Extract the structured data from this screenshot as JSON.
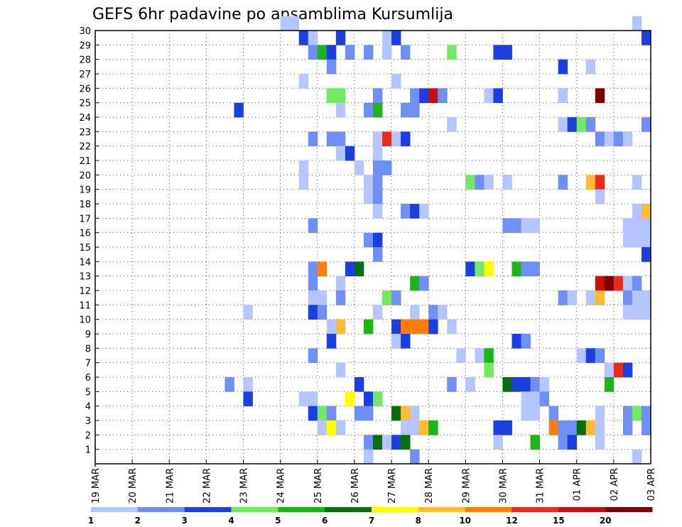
{
  "chart_data": {
    "type": "heatmap",
    "title": "GEFS 6hr padavine po ansamblima Kursumlija",
    "x_tick_labels": [
      "19 MAR",
      "20 MAR",
      "21 MAR",
      "22 MAR",
      "23 MAR",
      "24 MAR",
      "25 MAR",
      "26 MAR",
      "27 MAR",
      "28 MAR",
      "29 MAR",
      "30 MAR",
      "31 MAR",
      "01 APR",
      "02 APR",
      "03 APR"
    ],
    "y_tick_labels": [
      "1",
      "2",
      "3",
      "4",
      "5",
      "6",
      "7",
      "8",
      "9",
      "10",
      "11",
      "12",
      "13",
      "14",
      "15",
      "16",
      "17",
      "18",
      "19",
      "20",
      "21",
      "22",
      "23",
      "24",
      "25",
      "26",
      "27",
      "28",
      "29",
      "30"
    ],
    "x_steps_per_day": 4,
    "x_range_steps": [
      0,
      60
    ],
    "y_range_members": [
      0,
      30
    ],
    "grid": true,
    "legend_thresholds": [
      "1",
      "2",
      "3",
      "4",
      "5",
      "6",
      "7",
      "8",
      "10",
      "12",
      "15",
      "20"
    ],
    "legend_colors": [
      "#b4c5ff",
      "#6f8ff5",
      "#1c40e0",
      "#72e864",
      "#1bb41b",
      "#0a6e0a",
      "#ffff00",
      "#ffbb33",
      "#ff7d0a",
      "#e82c1e",
      "#c41010",
      "#7d0000"
    ],
    "cells": [
      [
        30,
        20,
        0
      ],
      [
        30,
        21,
        0
      ],
      [
        30,
        58,
        0
      ],
      [
        29,
        22,
        2
      ],
      [
        29,
        23,
        0
      ],
      [
        29,
        26,
        2
      ],
      [
        29,
        31,
        0
      ],
      [
        29,
        32,
        2
      ],
      [
        29,
        59,
        2
      ],
      [
        28,
        23,
        1
      ],
      [
        28,
        24,
        4
      ],
      [
        28,
        25,
        2
      ],
      [
        28,
        27,
        1
      ],
      [
        28,
        29,
        1
      ],
      [
        28,
        31,
        0
      ],
      [
        28,
        33,
        1
      ],
      [
        28,
        38,
        3
      ],
      [
        28,
        43,
        2
      ],
      [
        28,
        44,
        2
      ],
      [
        27,
        25,
        1
      ],
      [
        27,
        50,
        2
      ],
      [
        27,
        53,
        0
      ],
      [
        26,
        22,
        0
      ],
      [
        26,
        32,
        0
      ],
      [
        25,
        25,
        3
      ],
      [
        25,
        26,
        3
      ],
      [
        25,
        30,
        1
      ],
      [
        25,
        34,
        1
      ],
      [
        25,
        35,
        2
      ],
      [
        25,
        36,
        10
      ],
      [
        25,
        37,
        1
      ],
      [
        25,
        42,
        0
      ],
      [
        25,
        43,
        2
      ],
      [
        25,
        50,
        0
      ],
      [
        25,
        54,
        11
      ],
      [
        24,
        15,
        2
      ],
      [
        24,
        26,
        0
      ],
      [
        24,
        29,
        1
      ],
      [
        24,
        30,
        4
      ],
      [
        24,
        33,
        1
      ],
      [
        24,
        34,
        1
      ],
      [
        23,
        38,
        0
      ],
      [
        23,
        50,
        0
      ],
      [
        23,
        51,
        2
      ],
      [
        23,
        52,
        3
      ],
      [
        23,
        53,
        1
      ],
      [
        23,
        59,
        1
      ],
      [
        22,
        23,
        1
      ],
      [
        22,
        25,
        1
      ],
      [
        22,
        26,
        1
      ],
      [
        22,
        30,
        0
      ],
      [
        22,
        31,
        9
      ],
      [
        22,
        32,
        0
      ],
      [
        22,
        33,
        2
      ],
      [
        22,
        54,
        1
      ],
      [
        22,
        55,
        0
      ],
      [
        22,
        56,
        1
      ],
      [
        22,
        57,
        0
      ],
      [
        21,
        26,
        0
      ],
      [
        21,
        27,
        2
      ],
      [
        21,
        30,
        0
      ],
      [
        20,
        22,
        0
      ],
      [
        20,
        28,
        0
      ],
      [
        20,
        30,
        1
      ],
      [
        20,
        31,
        1
      ],
      [
        19,
        22,
        0
      ],
      [
        19,
        29,
        0
      ],
      [
        19,
        30,
        1
      ],
      [
        19,
        40,
        3
      ],
      [
        19,
        41,
        1
      ],
      [
        19,
        42,
        0
      ],
      [
        19,
        44,
        0
      ],
      [
        19,
        50,
        1
      ],
      [
        19,
        53,
        7
      ],
      [
        19,
        54,
        9
      ],
      [
        19,
        58,
        0
      ],
      [
        18,
        29,
        0
      ],
      [
        18,
        30,
        1
      ],
      [
        18,
        54,
        0
      ],
      [
        17,
        30,
        0
      ],
      [
        17,
        33,
        1
      ],
      [
        17,
        34,
        2
      ],
      [
        17,
        35,
        0
      ],
      [
        17,
        58,
        0
      ],
      [
        17,
        59,
        7
      ],
      [
        16,
        23,
        1
      ],
      [
        16,
        44,
        1
      ],
      [
        16,
        45,
        1
      ],
      [
        16,
        46,
        0
      ],
      [
        16,
        47,
        0
      ],
      [
        16,
        57,
        0
      ],
      [
        16,
        58,
        0
      ],
      [
        16,
        59,
        0
      ],
      [
        15,
        29,
        1
      ],
      [
        15,
        30,
        2
      ],
      [
        15,
        57,
        0
      ],
      [
        15,
        58,
        0
      ],
      [
        15,
        59,
        0
      ],
      [
        14,
        30,
        1
      ],
      [
        14,
        59,
        2
      ],
      [
        13,
        23,
        1
      ],
      [
        13,
        24,
        8
      ],
      [
        13,
        27,
        2
      ],
      [
        13,
        28,
        5
      ],
      [
        13,
        40,
        2
      ],
      [
        13,
        41,
        3
      ],
      [
        13,
        42,
        6
      ],
      [
        13,
        45,
        4
      ],
      [
        13,
        46,
        1
      ],
      [
        13,
        47,
        1
      ],
      [
        12,
        23,
        1
      ],
      [
        12,
        26,
        0
      ],
      [
        12,
        34,
        4
      ],
      [
        12,
        35,
        1
      ],
      [
        12,
        54,
        10
      ],
      [
        12,
        55,
        11
      ],
      [
        12,
        56,
        9
      ],
      [
        12,
        57,
        0
      ],
      [
        12,
        58,
        1
      ],
      [
        11,
        23,
        0
      ],
      [
        11,
        24,
        0
      ],
      [
        11,
        26,
        1
      ],
      [
        11,
        31,
        3
      ],
      [
        11,
        32,
        1
      ],
      [
        11,
        50,
        1
      ],
      [
        11,
        51,
        0
      ],
      [
        11,
        53,
        0
      ],
      [
        11,
        54,
        7
      ],
      [
        11,
        57,
        1
      ],
      [
        11,
        58,
        0
      ],
      [
        11,
        59,
        0
      ],
      [
        10,
        16,
        0
      ],
      [
        10,
        23,
        2
      ],
      [
        10,
        24,
        1
      ],
      [
        10,
        30,
        0
      ],
      [
        10,
        34,
        0
      ],
      [
        10,
        36,
        1
      ],
      [
        10,
        37,
        0
      ],
      [
        10,
        57,
        0
      ],
      [
        10,
        58,
        0
      ],
      [
        10,
        59,
        0
      ],
      [
        9,
        25,
        0
      ],
      [
        9,
        26,
        7
      ],
      [
        9,
        29,
        4
      ],
      [
        9,
        32,
        2
      ],
      [
        9,
        33,
        8
      ],
      [
        9,
        34,
        8
      ],
      [
        9,
        35,
        8
      ],
      [
        9,
        36,
        2
      ],
      [
        9,
        38,
        0
      ],
      [
        8,
        25,
        2
      ],
      [
        8,
        32,
        0
      ],
      [
        8,
        33,
        2
      ],
      [
        8,
        45,
        2
      ],
      [
        8,
        46,
        1
      ],
      [
        7,
        23,
        1
      ],
      [
        7,
        39,
        0
      ],
      [
        7,
        41,
        0
      ],
      [
        7,
        42,
        4
      ],
      [
        7,
        52,
        0
      ],
      [
        7,
        53,
        2
      ],
      [
        7,
        54,
        1
      ],
      [
        6,
        26,
        0
      ],
      [
        6,
        42,
        3
      ],
      [
        6,
        55,
        0
      ],
      [
        6,
        56,
        9
      ],
      [
        6,
        57,
        2
      ],
      [
        5,
        14,
        1
      ],
      [
        5,
        16,
        0
      ],
      [
        5,
        28,
        2
      ],
      [
        5,
        38,
        1
      ],
      [
        5,
        40,
        0
      ],
      [
        5,
        44,
        5
      ],
      [
        5,
        45,
        2
      ],
      [
        5,
        46,
        2
      ],
      [
        5,
        47,
        1
      ],
      [
        5,
        48,
        0
      ],
      [
        5,
        55,
        4
      ],
      [
        4,
        16,
        2
      ],
      [
        4,
        22,
        0
      ],
      [
        4,
        23,
        0
      ],
      [
        4,
        27,
        6
      ],
      [
        4,
        29,
        2
      ],
      [
        4,
        30,
        3
      ],
      [
        4,
        46,
        0
      ],
      [
        4,
        47,
        0
      ],
      [
        4,
        48,
        1
      ],
      [
        3,
        23,
        2
      ],
      [
        3,
        24,
        3
      ],
      [
        3,
        25,
        1
      ],
      [
        3,
        28,
        1
      ],
      [
        3,
        29,
        1
      ],
      [
        3,
        32,
        5
      ],
      [
        3,
        33,
        7
      ],
      [
        3,
        34,
        0
      ],
      [
        3,
        46,
        0
      ],
      [
        3,
        47,
        0
      ],
      [
        3,
        49,
        1
      ],
      [
        3,
        54,
        0
      ],
      [
        3,
        57,
        1
      ],
      [
        3,
        58,
        3
      ],
      [
        3,
        59,
        1
      ],
      [
        2,
        24,
        0
      ],
      [
        2,
        25,
        6
      ],
      [
        2,
        26,
        0
      ],
      [
        2,
        33,
        0
      ],
      [
        2,
        34,
        0
      ],
      [
        2,
        35,
        7
      ],
      [
        2,
        36,
        4
      ],
      [
        2,
        43,
        2
      ],
      [
        2,
        44,
        2
      ],
      [
        2,
        49,
        8
      ],
      [
        2,
        50,
        1
      ],
      [
        2,
        51,
        1
      ],
      [
        2,
        52,
        5
      ],
      [
        2,
        53,
        7
      ],
      [
        2,
        54,
        0
      ],
      [
        2,
        57,
        1
      ],
      [
        2,
        59,
        1
      ],
      [
        1,
        29,
        1
      ],
      [
        1,
        30,
        5
      ],
      [
        1,
        31,
        0
      ],
      [
        1,
        32,
        2
      ],
      [
        1,
        33,
        5
      ],
      [
        1,
        43,
        0
      ],
      [
        1,
        47,
        4
      ],
      [
        1,
        50,
        1
      ],
      [
        1,
        51,
        2
      ],
      [
        1,
        54,
        0
      ],
      [
        0,
        29,
        0
      ],
      [
        0,
        34,
        1
      ],
      [
        0,
        58,
        0
      ]
    ]
  }
}
